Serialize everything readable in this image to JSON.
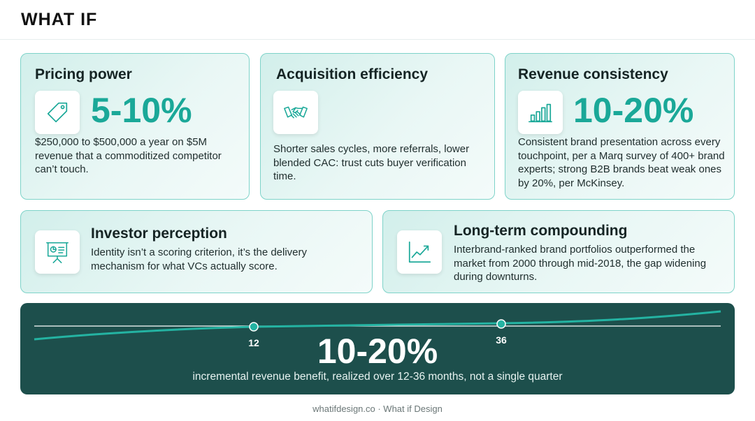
{
  "brand": {
    "logo": "WHAT IF",
    "accent": "#1aa898",
    "dark": "#1d4f4c"
  },
  "cards": [
    {
      "title": "Pricing power",
      "stat": "5-10%",
      "icon": "price-tag-icon",
      "desc": "$250,000 to $500,000 a year on $5M revenue that a commoditized competitor can’t touch."
    },
    {
      "title": "Acquisition efficiency",
      "stat": "",
      "icon": "handshake-icon",
      "desc": "Shorter sales cycles, more referrals, lower blended CAC: trust cuts buyer verification time."
    },
    {
      "title": "Revenue consistency",
      "stat": "10-20%",
      "icon": "bar-chart-icon",
      "desc": "Consistent brand presentation across every touchpoint, per a Marq survey of 400+ brand experts; strong B2B brands beat weak ones by 20%, per McKinsey."
    },
    {
      "title": "Investor perception",
      "icon": "presentation-board-icon",
      "desc": "Identity isn’t a scoring criterion, it’s the delivery mechanism for what VCs actually score."
    },
    {
      "title": "Long-term compounding",
      "icon": "trend-line-icon",
      "desc": "Interbrand-ranked brand portfolios outperformed the market from 2000 through mid-2018, the gap widening during downturns."
    }
  ],
  "summary": {
    "stat": "10-20%",
    "caption": "incremental revenue benefit, realized over 12-36 months, not a single quarter",
    "markers": [
      "12",
      "36"
    ]
  },
  "footer": "whatifdesign.co · What if Design"
}
